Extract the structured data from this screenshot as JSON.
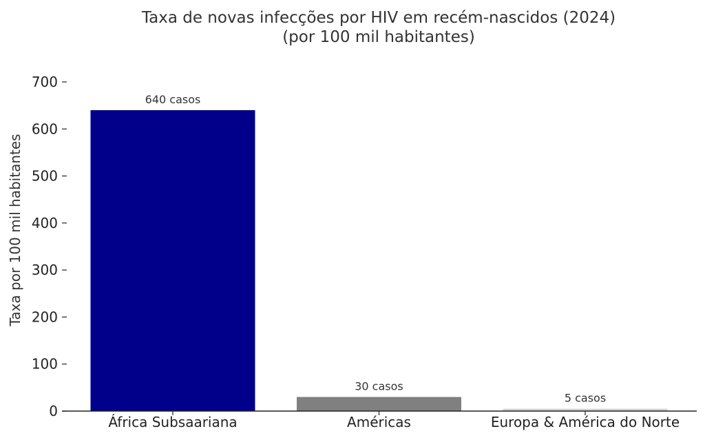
{
  "chart_data": {
    "type": "bar",
    "title": "Taxa de novas infecções por HIV em recém-nascidos (2024)",
    "subtitle": "(por 100 mil habitantes)",
    "xlabel": "",
    "ylabel": "Taxa por 100 mil habitantes",
    "categories": [
      "África Subsaariana",
      "Américas",
      "Europa & América do Norte"
    ],
    "values": [
      640,
      30,
      5
    ],
    "data_labels": [
      "640 casos",
      "30 casos",
      "5 casos"
    ],
    "colors": [
      "#00008b",
      "#808080",
      "#d3d3d3"
    ],
    "ylim": [
      0,
      700
    ],
    "yticks": [
      0,
      100,
      200,
      300,
      400,
      500,
      600,
      700
    ],
    "grid": false,
    "legend": "none"
  }
}
